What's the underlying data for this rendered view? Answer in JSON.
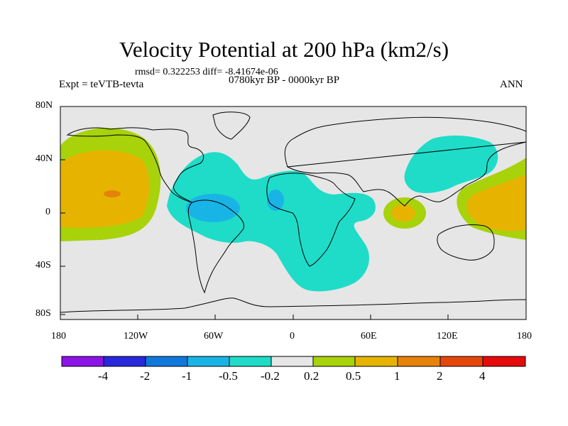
{
  "title": "Velocity Potential at 200 hPa (km2/s)",
  "stats_line": "rmsd= 0.322253 diff= -8.41674e-06",
  "subtitle": "0780kyr BP - 0000kyr BP",
  "experiment": "Expt = teVTB-tevta",
  "season": "ANN",
  "y_axis_labels": [
    "80N",
    "40N",
    "0",
    "40S",
    "80S"
  ],
  "x_axis_labels": [
    "180",
    "120W",
    "60W",
    "0",
    "60E",
    "120E",
    "180"
  ],
  "colorbar": {
    "labels": [
      "-4",
      "-2",
      "-1",
      "-0.5",
      "-0.2",
      "0.2",
      "0.5",
      "1",
      "2",
      "4"
    ],
    "colors": [
      "#8C14E6",
      "#2828DC",
      "#0F78DC",
      "#19B4E6",
      "#1EDCC8",
      "#E6E6E6",
      "#A8D20A",
      "#E6B400",
      "#E6820A",
      "#E6460A",
      "#E60A0A"
    ]
  },
  "field_colors": {
    "neutral": "#E6E6E6",
    "neg_light": "#1EDCC8",
    "neg_mid": "#19B4E6",
    "pos_light": "#A8D20A",
    "pos_mid": "#E6B400",
    "pos_strong": "#E6820A"
  }
}
